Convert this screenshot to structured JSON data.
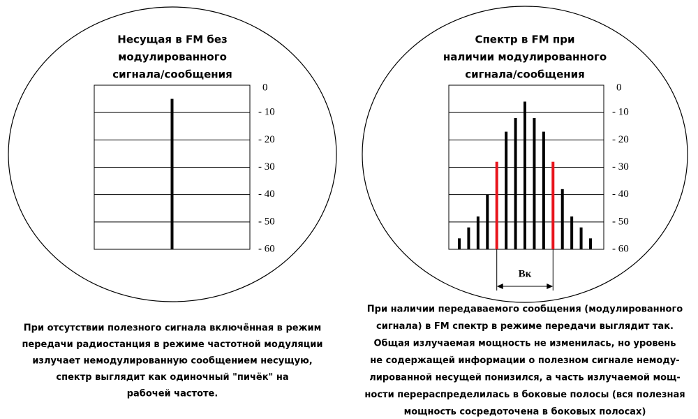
{
  "chart_data": [
    {
      "type": "bar",
      "title": [
        "Несущая в FM без",
        "модулированного",
        "сигнала/сообщения"
      ],
      "categories": [
        null
      ],
      "values": [
        -5
      ],
      "colors": [
        "#000000"
      ],
      "ylim": [
        -60,
        0
      ],
      "yticks": [
        0,
        {
          "value": -10,
          "label": "- 10"
        },
        {
          "value": -20,
          "label": "- 20"
        },
        {
          "value": -30,
          "label": "- 30"
        },
        {
          "value": -40,
          "label": "- 40"
        },
        {
          "value": -50,
          "label": "- 50"
        },
        {
          "value": -60,
          "label": "- 60"
        }
      ],
      "grid": true,
      "caption": [
        "При отсутствии полезного сигнала включённая в режим",
        "передачи радиостанция в режиме частотной модуляции",
        "излучает немодулированную сообщением несущую,",
        "спектр выглядит как одиночный \"пичёк\" на",
        "рабочей частоте."
      ]
    },
    {
      "type": "bar",
      "title": [
        "Спектр в FM при",
        "наличии модулированного",
        "сигнала/сообщения"
      ],
      "categories": [
        null,
        null,
        null,
        null,
        null,
        null,
        null,
        null,
        null,
        null,
        null,
        null,
        null,
        null,
        null
      ],
      "values": [
        -56,
        -52,
        -48,
        -40,
        -28,
        -17,
        -12,
        -6,
        -12,
        -17,
        -28,
        -38,
        -48,
        -52,
        -56
      ],
      "colors": [
        "#000000",
        "#000000",
        "#000000",
        "#000000",
        "#e8141c",
        "#000000",
        "#000000",
        "#000000",
        "#000000",
        "#000000",
        "#e8141c",
        "#000000",
        "#000000",
        "#000000",
        "#000000"
      ],
      "ylim": [
        -60,
        0
      ],
      "yticks": [
        0,
        {
          "value": -10,
          "label": "- 10"
        },
        {
          "value": -20,
          "label": "- 20"
        },
        {
          "value": -30,
          "label": "- 30"
        },
        {
          "value": -40,
          "label": "- 40"
        },
        {
          "value": -50,
          "label": "- 50"
        },
        {
          "value": -60,
          "label": "- 60"
        }
      ],
      "grid": true,
      "annotation": "Bк",
      "caption": [
        "При наличии передаваемого сообщения (модулированного",
        "сигнала) в FM спектр в режиме передачи выглядит так.",
        "Общая излучаемая мощность не изменилась, но уровень",
        "не содержащей информации о полезном сигнале немоду-",
        "лированной несущей понизился, а часть излучаемой мощ-",
        "ности перераспределилась в боковые полосы (вся полезная",
        "мощность сосредоточена в боковых полосах)"
      ]
    }
  ]
}
